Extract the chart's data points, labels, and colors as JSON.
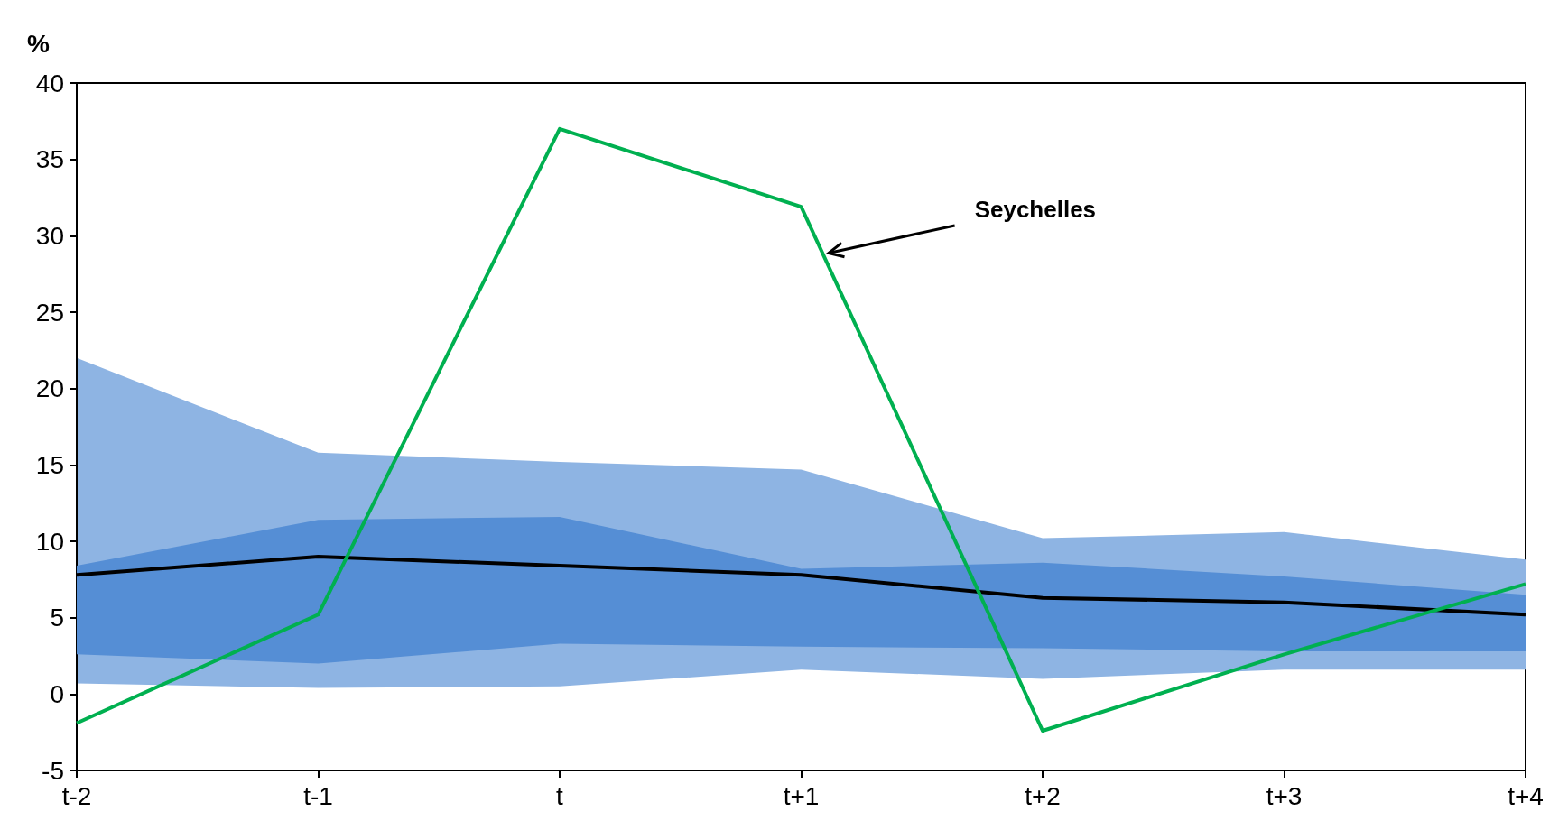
{
  "chart_data": {
    "type": "line",
    "ylabel": "%",
    "categories": [
      "t-2",
      "t-1",
      "t",
      "t+1",
      "t+2",
      "t+3",
      "t+4"
    ],
    "series": [
      {
        "type": "area",
        "color": "#8eb4e3",
        "values": [
          null,
          null,
          null,
          null,
          null,
          null,
          null
        ],
        "lower": [
          0.7,
          0.4,
          0.5,
          1.6,
          1.0,
          1.6,
          1.6
        ],
        "upper": [
          22.0,
          15.8,
          15.2,
          14.7,
          10.2,
          10.6,
          8.8
        ]
      },
      {
        "type": "area",
        "color": "#558ed5",
        "values": [
          null,
          null,
          null,
          null,
          null,
          null,
          null
        ],
        "lower": [
          2.6,
          2.0,
          3.3,
          3.1,
          3.0,
          2.8,
          2.8
        ],
        "upper": [
          8.4,
          11.4,
          11.6,
          8.2,
          8.6,
          7.7,
          6.5
        ]
      },
      {
        "type": "line",
        "color": "#000000",
        "values": [
          7.8,
          9.0,
          8.4,
          7.8,
          6.3,
          6.0,
          5.2
        ]
      },
      {
        "type": "line",
        "color": "#00b050",
        "values": [
          -1.9,
          5.2,
          37.0,
          31.9,
          -2.4,
          2.6,
          7.2
        ]
      }
    ],
    "annotations": [
      "Seychelles"
    ],
    "ylim": [
      -5,
      40
    ],
    "yticks": [
      -5,
      0,
      5,
      10,
      15,
      20,
      25,
      30,
      35,
      40
    ],
    "grid": false,
    "marker": "none",
    "line_style": "solid"
  }
}
